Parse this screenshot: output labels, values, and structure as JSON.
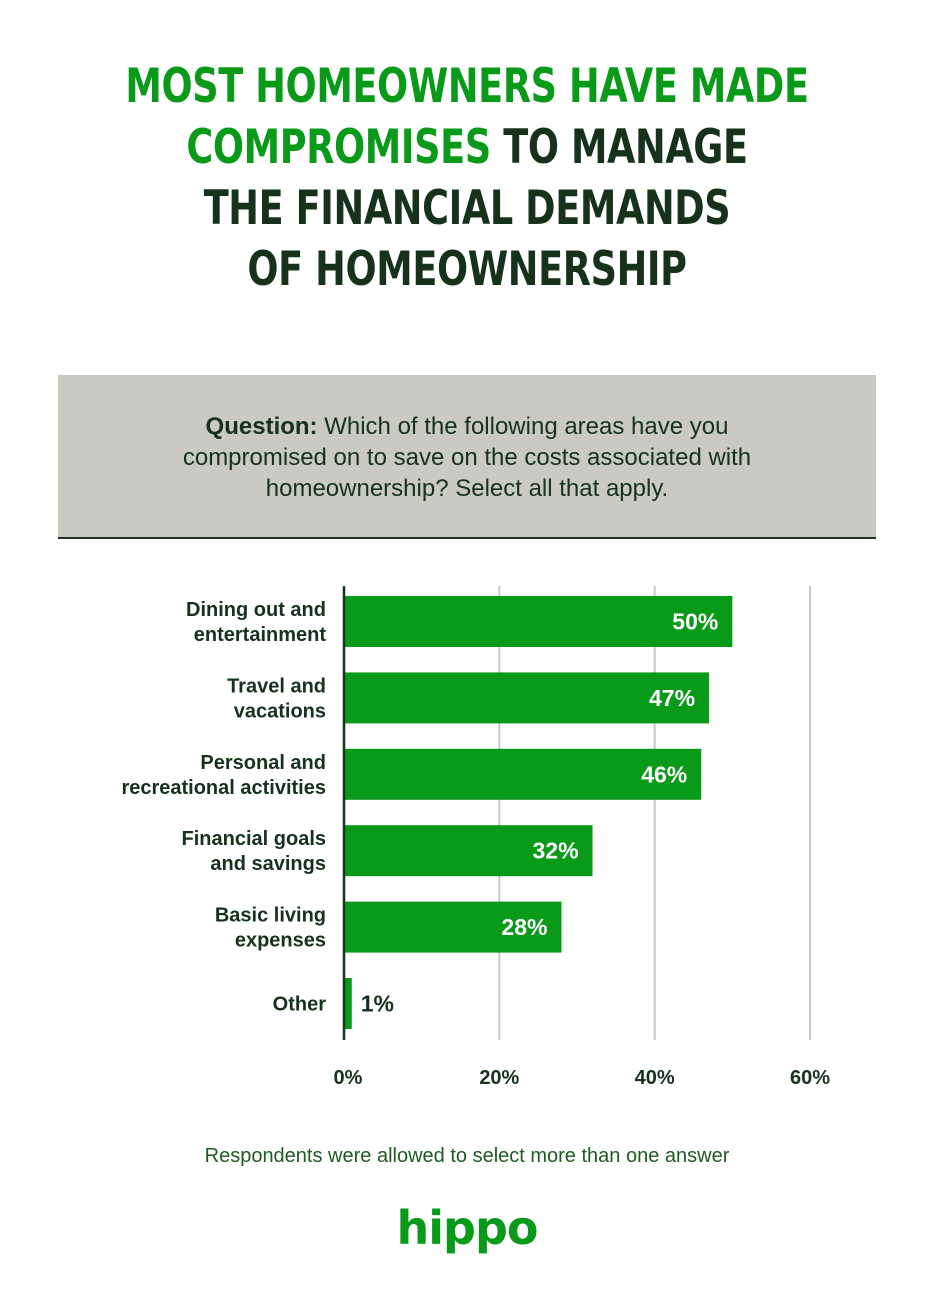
{
  "title": {
    "line1": "MOST HOMEOWNERS HAVE MADE",
    "line2_highlight": "COMPROMISES",
    "line2_rest": " TO MANAGE",
    "line3": "THE FINANCIAL DEMANDS",
    "line4": "OF HOMEOWNERSHIP"
  },
  "question": {
    "label": "Question:",
    "line1_rest": " Which of the following areas have you",
    "line2": "compromised on to save on the costs associated with",
    "line3": "homeownership? Select all that apply."
  },
  "chart_data": {
    "type": "bar",
    "orientation": "horizontal",
    "categories": [
      [
        "Dining out and",
        "entertainment"
      ],
      [
        "Travel and",
        "vacations"
      ],
      [
        "Personal and",
        "recreational activities"
      ],
      [
        "Financial goals",
        "and savings"
      ],
      [
        "Basic living",
        "expenses"
      ],
      [
        "Other"
      ]
    ],
    "values": [
      50,
      47,
      46,
      32,
      28,
      1
    ],
    "value_labels": [
      "50%",
      "47%",
      "46%",
      "32%",
      "28%",
      "1%"
    ],
    "xlim": [
      0,
      60
    ],
    "x_ticks": [
      "0%",
      "20%",
      "40%",
      "60%"
    ],
    "grid": true,
    "bar_color": "#0a9a1a"
  },
  "footnote": "Respondents were allowed to select more than one answer",
  "logo": "hippo",
  "colors": {
    "accent": "#0a9a1a",
    "dark_text": "#16321a",
    "question_bg": "#cac9c3"
  }
}
